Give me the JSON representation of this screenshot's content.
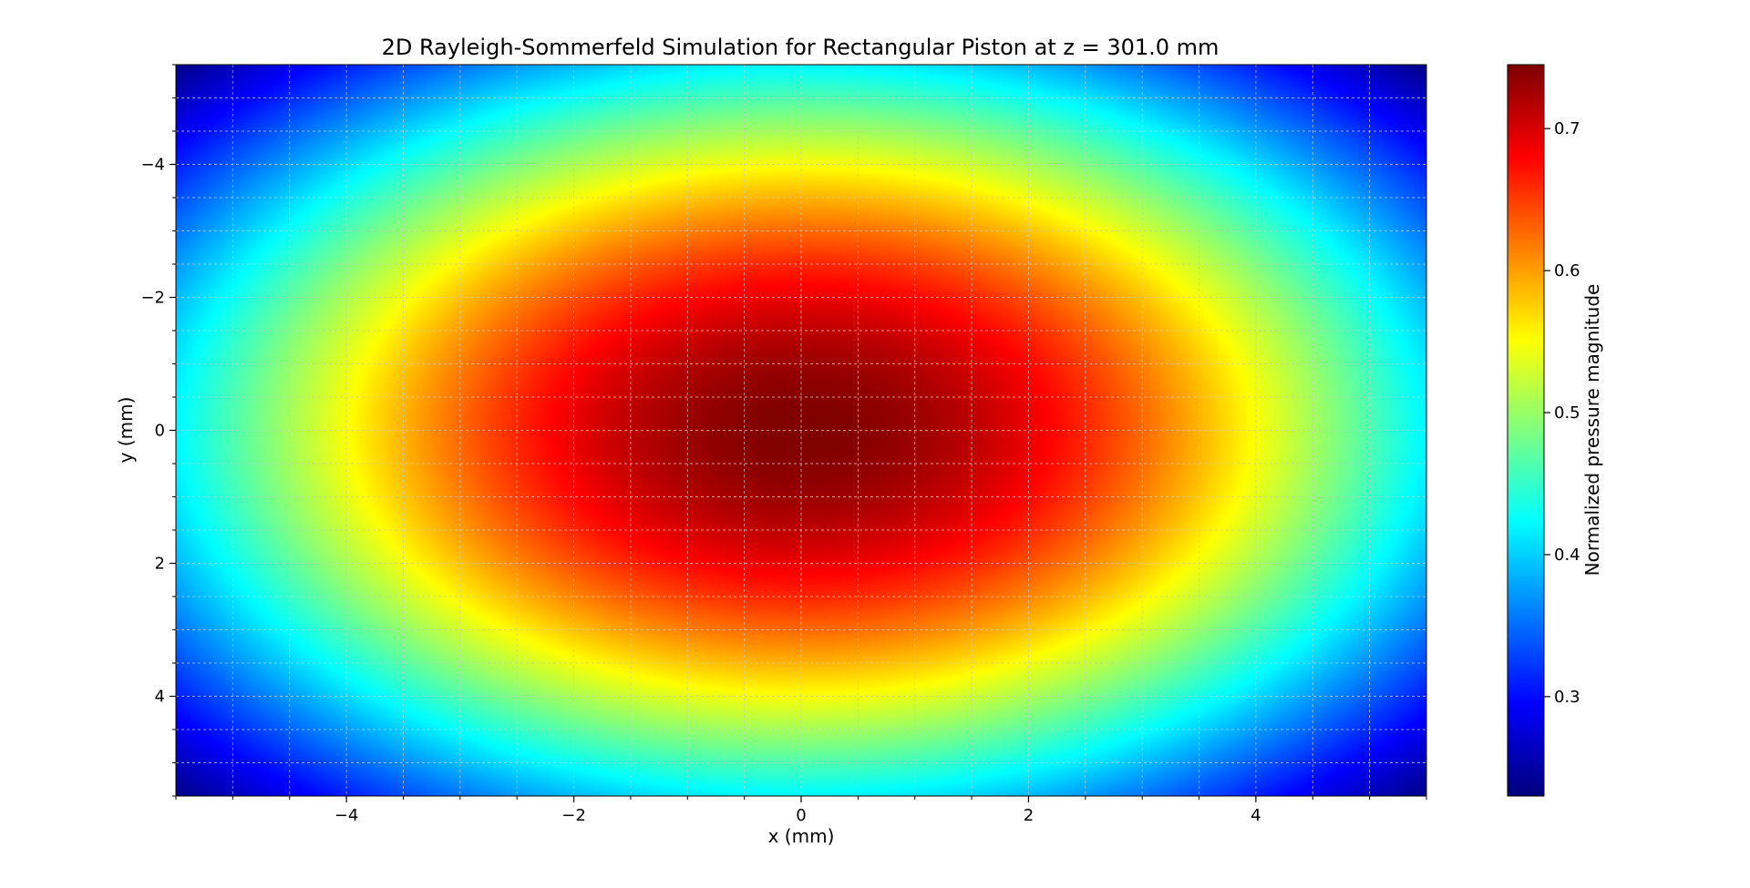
{
  "chart_data": {
    "type": "heatmap",
    "title": "2D Rayleigh-Sommerfeld Simulation for Rectangular Piston at z = 301.0 mm",
    "xlabel": "x (mm)",
    "ylabel": "y (mm)",
    "colorbar_label": "Normalized pressure magnitude",
    "colormap": "jet",
    "xlim": [
      -5.5,
      5.5
    ],
    "ylim": [
      -5.5,
      5.5
    ],
    "y_inverted": true,
    "x_ticks": [
      -4,
      -2,
      0,
      2,
      4
    ],
    "x_tick_labels": [
      "−4",
      "−2",
      "0",
      "2",
      "4"
    ],
    "y_ticks": [
      -4,
      -2,
      0,
      2,
      4
    ],
    "y_tick_labels": [
      "−4",
      "−2",
      "0",
      "2",
      "4"
    ],
    "x_minor_step": 0.5,
    "y_minor_step": 0.5,
    "grid": true,
    "color_range": [
      0.23,
      0.745
    ],
    "colorbar_ticks": [
      0.3,
      0.4,
      0.5,
      0.6,
      0.7
    ],
    "colorbar_tick_labels": [
      "0.3",
      "0.4",
      "0.5",
      "0.6",
      "0.7"
    ],
    "peak_value": 0.745,
    "corner_value": 0.23,
    "center": [
      0,
      0
    ]
  }
}
